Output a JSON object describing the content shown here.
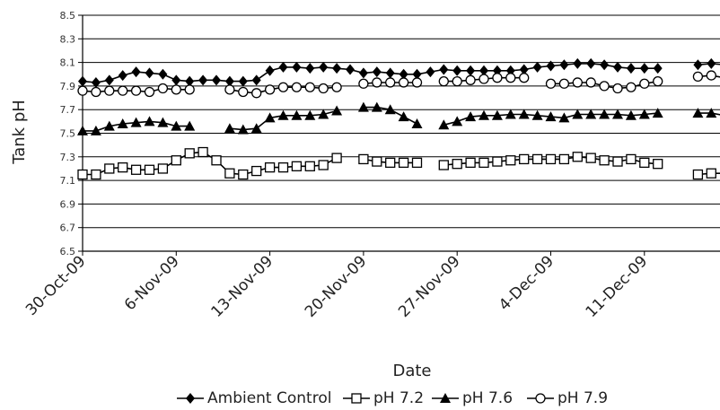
{
  "chart_data": {
    "type": "line",
    "title": "",
    "xlabel": "Date",
    "ylabel": "Tank pH",
    "ylim": [
      6.5,
      8.5
    ],
    "yticks": [
      "6.5",
      "6.7",
      "6.9",
      "7.1",
      "7.3",
      "7.5",
      "7.7",
      "7.9",
      "8.1",
      "8.3",
      "8.5"
    ],
    "xticks": [
      "30-Oct-09",
      "6-Nov-09",
      "13-Nov-09",
      "20-Nov-09",
      "27-Nov-09",
      "4-Dec-09",
      "11-Dec-09"
    ],
    "x_start": "30-Oct-09",
    "x_end": "18-Dec-09",
    "grid": true,
    "legend_position": "bottom",
    "series": [
      {
        "name": "Ambient Control",
        "marker": "diamond",
        "points": [
          [
            "30-Oct-09",
            7.94
          ],
          [
            "31-Oct-09",
            7.93
          ],
          [
            "1-Nov-09",
            7.95
          ],
          [
            "2-Nov-09",
            7.99
          ],
          [
            "3-Nov-09",
            8.02
          ],
          [
            "4-Nov-09",
            8.01
          ],
          [
            "5-Nov-09",
            8.0
          ],
          [
            "6-Nov-09",
            7.95
          ],
          [
            "7-Nov-09",
            7.94
          ],
          [
            "8-Nov-09",
            7.95
          ],
          [
            "9-Nov-09",
            7.95
          ],
          [
            "10-Nov-09",
            7.94
          ],
          [
            "11-Nov-09",
            7.94
          ],
          [
            "12-Nov-09",
            7.95
          ],
          [
            "13-Nov-09",
            8.03
          ],
          [
            "14-Nov-09",
            8.06
          ],
          [
            "15-Nov-09",
            8.06
          ],
          [
            "16-Nov-09",
            8.05
          ],
          [
            "17-Nov-09",
            8.06
          ],
          [
            "18-Nov-09",
            8.05
          ],
          [
            "19-Nov-09",
            8.04
          ],
          [
            "20-Nov-09",
            8.01
          ],
          [
            "21-Nov-09",
            8.02
          ],
          [
            "22-Nov-09",
            8.01
          ],
          [
            "23-Nov-09",
            8.0
          ],
          [
            "24-Nov-09",
            8.0
          ],
          [
            "25-Nov-09",
            8.02
          ],
          [
            "26-Nov-09",
            8.04
          ],
          [
            "27-Nov-09",
            8.03
          ],
          [
            "28-Nov-09",
            8.03
          ],
          [
            "29-Nov-09",
            8.03
          ],
          [
            "30-Nov-09",
            8.03
          ],
          [
            "1-Dec-09",
            8.03
          ],
          [
            "2-Dec-09",
            8.04
          ],
          [
            "3-Dec-09",
            8.06
          ],
          [
            "4-Dec-09",
            8.07
          ],
          [
            "5-Dec-09",
            8.08
          ],
          [
            "6-Dec-09",
            8.09
          ],
          [
            "7-Dec-09",
            8.09
          ],
          [
            "8-Dec-09",
            8.08
          ],
          [
            "9-Dec-09",
            8.06
          ],
          [
            "10-Dec-09",
            8.05
          ],
          [
            "11-Dec-09",
            8.05
          ],
          [
            "12-Dec-09",
            8.05
          ],
          [
            "15-Dec-09",
            8.08
          ],
          [
            "16-Dec-09",
            8.09
          ],
          [
            "17-Dec-09",
            8.08
          ],
          [
            "18-Dec-09",
            8.07
          ]
        ]
      },
      {
        "name": "pH 7.2",
        "marker": "square",
        "points": [
          [
            "30-Oct-09",
            7.15
          ],
          [
            "31-Oct-09",
            7.15
          ],
          [
            "1-Nov-09",
            7.2
          ],
          [
            "2-Nov-09",
            7.21
          ],
          [
            "3-Nov-09",
            7.19
          ],
          [
            "4-Nov-09",
            7.19
          ],
          [
            "5-Nov-09",
            7.2
          ],
          [
            "6-Nov-09",
            7.27
          ],
          [
            "7-Nov-09",
            7.33
          ],
          [
            "8-Nov-09",
            7.34
          ],
          [
            "9-Nov-09",
            7.27
          ],
          [
            "10-Nov-09",
            7.16
          ],
          [
            "11-Nov-09",
            7.15
          ],
          [
            "12-Nov-09",
            7.18
          ],
          [
            "13-Nov-09",
            7.21
          ],
          [
            "14-Nov-09",
            7.21
          ],
          [
            "15-Nov-09",
            7.22
          ],
          [
            "16-Nov-09",
            7.22
          ],
          [
            "17-Nov-09",
            7.23
          ],
          [
            "18-Nov-09",
            7.29
          ],
          [
            "20-Nov-09",
            7.28
          ],
          [
            "21-Nov-09",
            7.26
          ],
          [
            "22-Nov-09",
            7.25
          ],
          [
            "23-Nov-09",
            7.25
          ],
          [
            "24-Nov-09",
            7.25
          ],
          [
            "26-Nov-09",
            7.23
          ],
          [
            "27-Nov-09",
            7.24
          ],
          [
            "28-Nov-09",
            7.25
          ],
          [
            "29-Nov-09",
            7.25
          ],
          [
            "30-Nov-09",
            7.26
          ],
          [
            "1-Dec-09",
            7.27
          ],
          [
            "2-Dec-09",
            7.28
          ],
          [
            "3-Dec-09",
            7.28
          ],
          [
            "4-Dec-09",
            7.28
          ],
          [
            "5-Dec-09",
            7.28
          ],
          [
            "6-Dec-09",
            7.3
          ],
          [
            "7-Dec-09",
            7.29
          ],
          [
            "8-Dec-09",
            7.27
          ],
          [
            "9-Dec-09",
            7.26
          ],
          [
            "10-Dec-09",
            7.28
          ],
          [
            "11-Dec-09",
            7.25
          ],
          [
            "12-Dec-09",
            7.24
          ],
          [
            "15-Dec-09",
            7.15
          ],
          [
            "16-Dec-09",
            7.16
          ],
          [
            "17-Dec-09",
            7.16
          ]
        ]
      },
      {
        "name": "pH 7.6",
        "marker": "triangle",
        "points": [
          [
            "30-Oct-09",
            7.52
          ],
          [
            "31-Oct-09",
            7.52
          ],
          [
            "1-Nov-09",
            7.56
          ],
          [
            "2-Nov-09",
            7.58
          ],
          [
            "3-Nov-09",
            7.59
          ],
          [
            "4-Nov-09",
            7.6
          ],
          [
            "5-Nov-09",
            7.59
          ],
          [
            "6-Nov-09",
            7.56
          ],
          [
            "7-Nov-09",
            7.56
          ],
          [
            "10-Nov-09",
            7.54
          ],
          [
            "11-Nov-09",
            7.53
          ],
          [
            "12-Nov-09",
            7.54
          ],
          [
            "13-Nov-09",
            7.63
          ],
          [
            "14-Nov-09",
            7.65
          ],
          [
            "15-Nov-09",
            7.65
          ],
          [
            "16-Nov-09",
            7.65
          ],
          [
            "17-Nov-09",
            7.66
          ],
          [
            "18-Nov-09",
            7.69
          ],
          [
            "20-Nov-09",
            7.72
          ],
          [
            "21-Nov-09",
            7.72
          ],
          [
            "22-Nov-09",
            7.7
          ],
          [
            "23-Nov-09",
            7.64
          ],
          [
            "24-Nov-09",
            7.58
          ],
          [
            "26-Nov-09",
            7.57
          ],
          [
            "27-Nov-09",
            7.6
          ],
          [
            "28-Nov-09",
            7.64
          ],
          [
            "29-Nov-09",
            7.65
          ],
          [
            "30-Nov-09",
            7.65
          ],
          [
            "1-Dec-09",
            7.66
          ],
          [
            "2-Dec-09",
            7.66
          ],
          [
            "3-Dec-09",
            7.65
          ],
          [
            "4-Dec-09",
            7.64
          ],
          [
            "5-Dec-09",
            7.63
          ],
          [
            "6-Dec-09",
            7.66
          ],
          [
            "7-Dec-09",
            7.66
          ],
          [
            "8-Dec-09",
            7.66
          ],
          [
            "9-Dec-09",
            7.66
          ],
          [
            "10-Dec-09",
            7.65
          ],
          [
            "11-Dec-09",
            7.66
          ],
          [
            "12-Dec-09",
            7.67
          ],
          [
            "15-Dec-09",
            7.67
          ],
          [
            "16-Dec-09",
            7.67
          ],
          [
            "17-Dec-09",
            7.65
          ],
          [
            "18-Dec-09",
            7.67
          ]
        ]
      },
      {
        "name": "pH 7.9",
        "marker": "circle",
        "points": [
          [
            "30-Oct-09",
            7.86
          ],
          [
            "31-Oct-09",
            7.85
          ],
          [
            "1-Nov-09",
            7.86
          ],
          [
            "2-Nov-09",
            7.86
          ],
          [
            "3-Nov-09",
            7.86
          ],
          [
            "4-Nov-09",
            7.85
          ],
          [
            "5-Nov-09",
            7.88
          ],
          [
            "6-Nov-09",
            7.87
          ],
          [
            "7-Nov-09",
            7.87
          ],
          [
            "10-Nov-09",
            7.87
          ],
          [
            "11-Nov-09",
            7.85
          ],
          [
            "12-Nov-09",
            7.84
          ],
          [
            "13-Nov-09",
            7.87
          ],
          [
            "14-Nov-09",
            7.89
          ],
          [
            "15-Nov-09",
            7.89
          ],
          [
            "16-Nov-09",
            7.89
          ],
          [
            "17-Nov-09",
            7.88
          ],
          [
            "18-Nov-09",
            7.89
          ],
          [
            "20-Nov-09",
            7.92
          ],
          [
            "21-Nov-09",
            7.93
          ],
          [
            "22-Nov-09",
            7.93
          ],
          [
            "23-Nov-09",
            7.93
          ],
          [
            "24-Nov-09",
            7.93
          ],
          [
            "26-Nov-09",
            7.94
          ],
          [
            "27-Nov-09",
            7.94
          ],
          [
            "28-Nov-09",
            7.95
          ],
          [
            "29-Nov-09",
            7.96
          ],
          [
            "30-Nov-09",
            7.97
          ],
          [
            "1-Dec-09",
            7.97
          ],
          [
            "2-Dec-09",
            7.97
          ],
          [
            "4-Dec-09",
            7.92
          ],
          [
            "5-Dec-09",
            7.92
          ],
          [
            "6-Dec-09",
            7.93
          ],
          [
            "7-Dec-09",
            7.93
          ],
          [
            "8-Dec-09",
            7.9
          ],
          [
            "9-Dec-09",
            7.88
          ],
          [
            "10-Dec-09",
            7.89
          ],
          [
            "11-Dec-09",
            7.92
          ],
          [
            "12-Dec-09",
            7.94
          ],
          [
            "15-Dec-09",
            7.98
          ],
          [
            "16-Dec-09",
            7.99
          ],
          [
            "17-Dec-09",
            7.97
          ],
          [
            "18-Dec-09",
            7.92
          ]
        ]
      }
    ]
  },
  "colors": {
    "series": "#000000",
    "grid": "#000000",
    "background": "#ffffff"
  }
}
